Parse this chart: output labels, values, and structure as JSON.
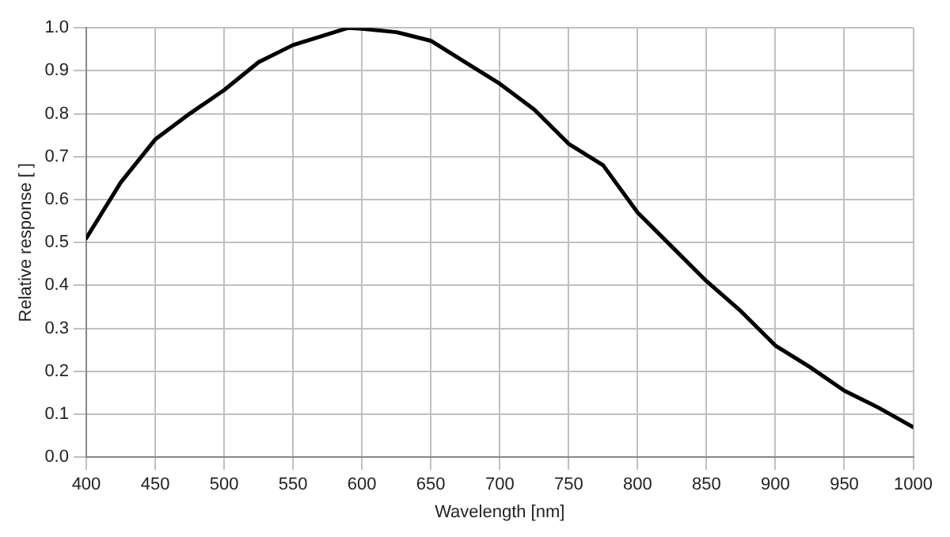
{
  "chart_data": {
    "type": "line",
    "xlabel": "Wavelength [nm]",
    "ylabel": "Relative response [ ]",
    "series": [
      {
        "color": "#000000",
        "x": [
          400,
          425,
          450,
          475,
          500,
          525,
          550,
          575,
          590,
          600,
          625,
          650,
          675,
          700,
          725,
          750,
          775,
          800,
          825,
          850,
          875,
          900,
          925,
          950,
          975,
          1000
        ],
        "values": [
          0.51,
          0.64,
          0.74,
          0.8,
          0.855,
          0.92,
          0.96,
          0.985,
          1.0,
          0.998,
          0.99,
          0.97,
          0.92,
          0.87,
          0.81,
          0.73,
          0.68,
          0.57,
          0.49,
          0.41,
          0.34,
          0.26,
          0.21,
          0.155,
          0.115,
          0.07
        ]
      }
    ],
    "xlim": [
      400,
      1000
    ],
    "xticks": [
      400,
      450,
      500,
      550,
      600,
      650,
      700,
      750,
      800,
      850,
      900,
      950,
      1000
    ],
    "ylim": [
      0,
      1
    ],
    "yticks": [
      {
        "value": 0,
        "label": "0.0"
      },
      {
        "value": 0.1,
        "label": "0.1"
      },
      {
        "value": 0.2,
        "label": "0.2"
      },
      {
        "value": 0.3,
        "label": "0.3"
      },
      {
        "value": 0.4,
        "label": "0.4"
      },
      {
        "value": 0.5,
        "label": "0.5"
      },
      {
        "value": 0.6,
        "label": "0.6"
      },
      {
        "value": 0.7,
        "label": "0.7"
      },
      {
        "value": 0.8,
        "label": "0.8"
      },
      {
        "value": 0.9,
        "label": "0.9"
      },
      {
        "value": 1,
        "label": "1.0"
      }
    ],
    "grid": true,
    "legend": false,
    "marker": "none",
    "line_style": "solid"
  }
}
